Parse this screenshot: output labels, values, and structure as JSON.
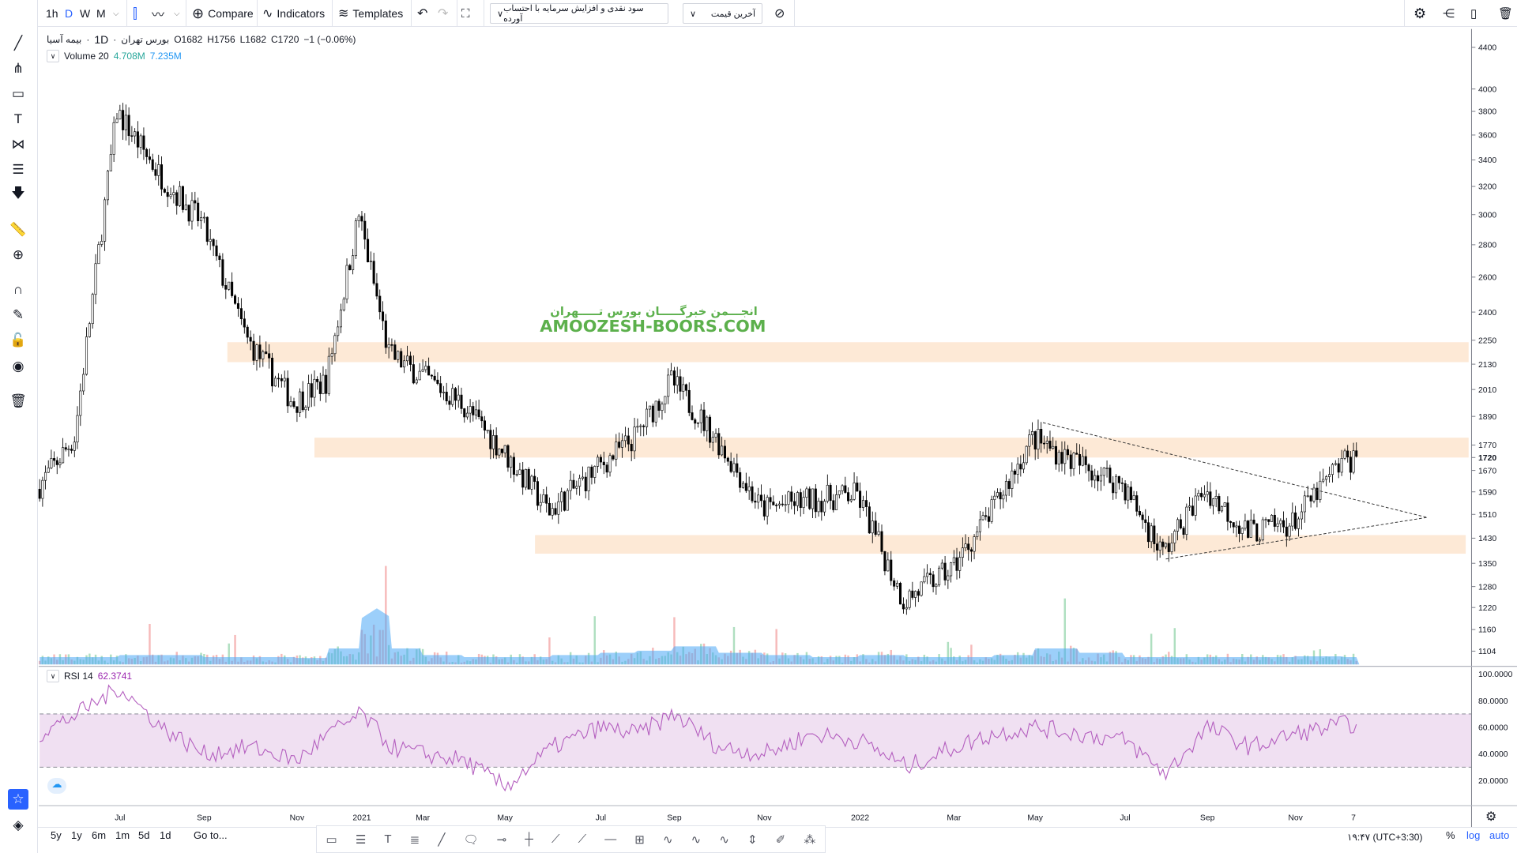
{
  "topbar": {
    "intervals": [
      "1h",
      "D",
      "W",
      "M"
    ],
    "active_interval": "D",
    "compare": "Compare",
    "indicators": "Indicators",
    "templates": "Templates",
    "adjustment_dropdown": "سود نقدی و افزایش سرمایه با احتساب آورده",
    "price_dropdown": "آخرین قیمت",
    "icons": [
      "crosshair-icon",
      "chevron-down-icon",
      "candles-icon",
      "line-chart-icon",
      "plus-circle-icon",
      "indicators-icon",
      "templates-icon",
      "undo-icon",
      "redo-icon",
      "fullscreen-icon",
      "eye-off-icon",
      "gear-icon",
      "share-icon",
      "snapshot-icon",
      "trash-icon"
    ]
  },
  "legend": {
    "symbol": "بیمه آسیا",
    "interval": "1D",
    "exchange": "بورس تهران",
    "open": "O1682",
    "high": "H1756",
    "low": "L1682",
    "close": "C1720",
    "change": "−1 (−0.06%)",
    "volume_label": "Volume 20",
    "volume_value": "4.708M",
    "volume_ma": "7.235M",
    "rsi_label": "RSI 14",
    "rsi_value": "62.3741"
  },
  "watermark": {
    "fa": "انجـــمن خبرگـــــان بورس تـــــهران",
    "en": "AMOOZESH-BOORS.COM",
    "color": "#5cb04c"
  },
  "colors": {
    "accent": "#2962ff",
    "zone": "#fde9d6",
    "rsi_line": "#b45fbf",
    "rsi_band": "#f0e0f2",
    "vol_up": "#9bd7b0",
    "vol_down": "#f4a9a9",
    "vol_ma": "#4aa8f5"
  },
  "price_axis": [
    "4400",
    "4000",
    "3800",
    "3600",
    "3400",
    "3200",
    "3000",
    "2800",
    "2600",
    "2400",
    "2250",
    "2130",
    "2010",
    "1890",
    "1770",
    "1720",
    "1670",
    "1590",
    "1510",
    "1430",
    "1350",
    "1280",
    "1220",
    "1160",
    "1104"
  ],
  "rsi_axis": [
    "100.0000",
    "80.0000",
    "60.0000",
    "40.0000",
    "20.0000"
  ],
  "time_axis": [
    "Jul",
    "Sep",
    "Nov",
    "2021",
    "Mar",
    "May",
    "Jul",
    "Sep",
    "Nov",
    "2022",
    "Mar",
    "May",
    "Jul",
    "Sep",
    "Nov",
    "7"
  ],
  "bottombar": {
    "ranges": [
      "5y",
      "1y",
      "6m",
      "1m",
      "5d",
      "1d"
    ],
    "goto": "Go to...",
    "time": "۱۹:۴۷ (UTC+3:30)",
    "percent": "%",
    "log": "log",
    "auto": "auto"
  },
  "chart_data": {
    "type": "candlestick",
    "scale": "log",
    "ylim": [
      1104,
      4400
    ],
    "months": [
      "2020-05",
      "2020-06",
      "2020-07",
      "2020-08",
      "2020-09",
      "2020-10",
      "2020-11",
      "2020-12",
      "2021-01",
      "2021-02",
      "2021-03",
      "2021-04",
      "2021-05",
      "2021-06",
      "2021-07",
      "2021-08",
      "2021-09",
      "2021-10",
      "2021-11",
      "2021-12",
      "2022-01",
      "2022-02",
      "2022-03",
      "2022-04",
      "2022-05",
      "2022-06",
      "2022-07",
      "2022-08",
      "2022-09",
      "2022-10",
      "2022-11",
      "2022-12"
    ],
    "close_approx": [
      1600,
      1800,
      3800,
      3300,
      2950,
      2250,
      1950,
      2050,
      3000,
      2180,
      2080,
      1950,
      1750,
      1520,
      1680,
      1800,
      2050,
      1800,
      1530,
      1560,
      1580,
      1240,
      1330,
      1520,
      1800,
      1700,
      1620,
      1380,
      1600,
      1450,
      1480,
      1700
    ],
    "last": {
      "open": 1682,
      "high": 1756,
      "low": 1682,
      "close": 1720
    },
    "last_price": 1720,
    "zones": [
      [
        2140,
        2240
      ],
      [
        1720,
        1800
      ],
      [
        1380,
        1440
      ]
    ],
    "triangle_lines": [
      {
        "from": 1870,
        "to": 1490
      },
      {
        "from": 1360,
        "to": 1490
      }
    ],
    "rsi_approx": [
      55,
      70,
      90,
      60,
      40,
      45,
      35,
      55,
      70,
      45,
      40,
      35,
      15,
      45,
      60,
      55,
      70,
      45,
      40,
      55,
      50,
      30,
      45,
      55,
      60,
      55,
      50,
      25,
      60,
      45,
      55,
      62.37
    ],
    "rsi_bands": [
      70,
      30
    ],
    "volume_ma_relative": [
      0.1,
      0.1,
      0.15,
      0.15,
      0.1,
      0.1,
      0.08,
      0.3,
      1.0,
      0.3,
      0.15,
      0.1,
      0.1,
      0.15,
      0.2,
      0.25,
      0.35,
      0.2,
      0.15,
      0.1,
      0.15,
      0.1,
      0.1,
      0.15,
      0.3,
      0.2,
      0.1,
      0.1,
      0.1,
      0.1,
      0.12,
      0.1
    ]
  }
}
